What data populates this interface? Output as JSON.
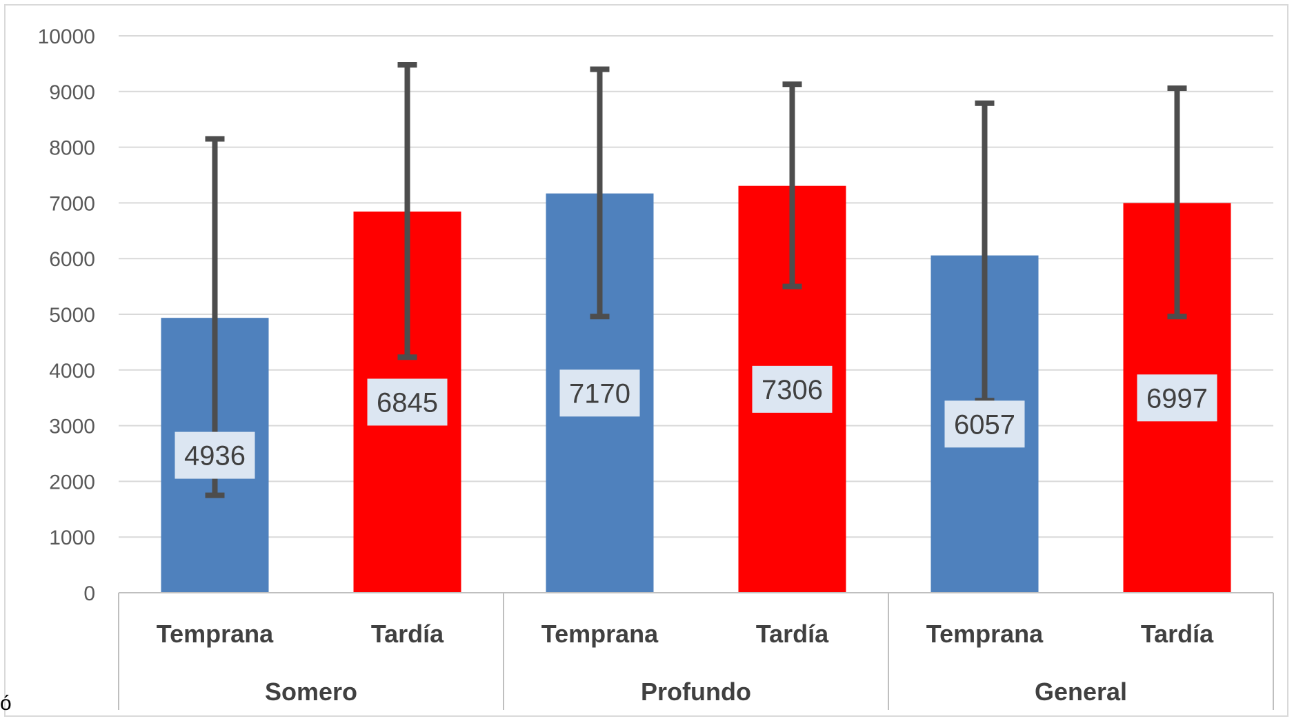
{
  "chart_data": {
    "type": "bar",
    "ylim": [
      0,
      10000
    ],
    "yticks": [
      0,
      1000,
      2000,
      3000,
      4000,
      5000,
      6000,
      7000,
      8000,
      9000,
      10000
    ],
    "grid": true,
    "groups": [
      {
        "name": "Somero",
        "bars": [
          {
            "category": "Temprana",
            "value": 4936,
            "label": "4936",
            "err_low": 1750,
            "err_high": 8150
          },
          {
            "category": "Tardía",
            "value": 6845,
            "label": "6845",
            "err_low": 4230,
            "err_high": 9480
          }
        ]
      },
      {
        "name": "Profundo",
        "bars": [
          {
            "category": "Temprana",
            "value": 7170,
            "label": "7170",
            "err_low": 4960,
            "err_high": 9400
          },
          {
            "category": "Tardía",
            "value": 7306,
            "label": "7306",
            "err_low": 5500,
            "err_high": 9130
          }
        ]
      },
      {
        "name": "General",
        "bars": [
          {
            "category": "Temprana",
            "value": 6057,
            "label": "6057",
            "err_low": 3450,
            "err_high": 8790
          },
          {
            "category": "Tardía",
            "value": 6997,
            "label": "6997",
            "err_low": 4960,
            "err_high": 9060
          }
        ]
      }
    ],
    "colors": {
      "Temprana": "#4f81bd",
      "Tardía": "#ff0000",
      "label_box": "#dce6f2",
      "error_bar": "#4d4d4d"
    },
    "stray_text": "ó"
  }
}
